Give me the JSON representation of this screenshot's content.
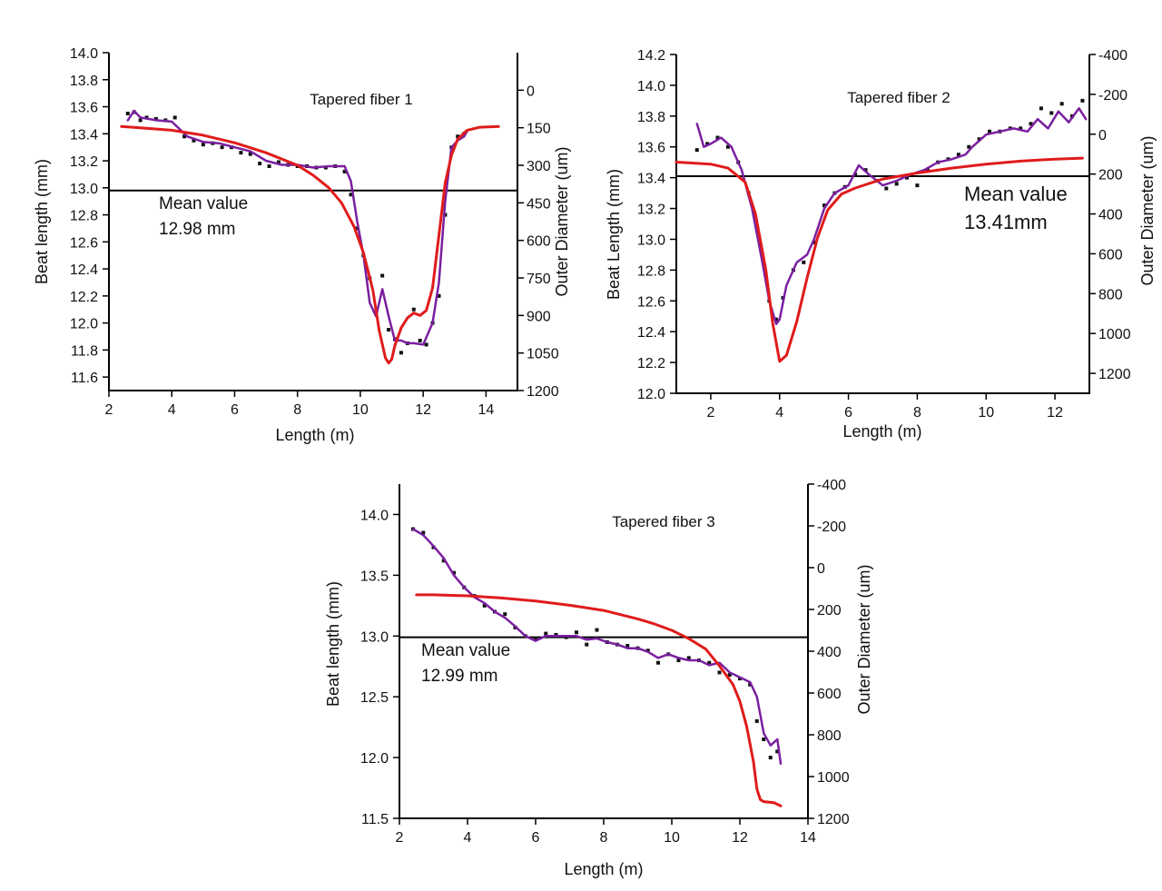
{
  "colors": {
    "data_points": "#111111",
    "fit_curve": "#7a1fa0",
    "outer_diameter": "#e01b1b",
    "mean_line": "#000000"
  },
  "chart_data": [
    {
      "type": "line",
      "title": "Tapered fiber 1",
      "xlabel": "Length (m)",
      "ylabel": "Beat length (mm)",
      "y2label": "Outer Diameter  (um)",
      "xlim": [
        2,
        15
      ],
      "ylim": [
        11.5,
        14.0
      ],
      "y2lim": [
        1200,
        -150
      ],
      "x_ticks": [
        2,
        4,
        6,
        8,
        10,
        12,
        14
      ],
      "y_ticks": [
        11.6,
        11.8,
        12.0,
        12.2,
        12.4,
        12.6,
        12.8,
        13.0,
        13.2,
        13.4,
        13.6,
        13.8,
        14.0
      ],
      "y2_ticks": [
        0,
        150,
        300,
        450,
        600,
        750,
        900,
        1050,
        1200
      ],
      "x_tick_labels": [
        "2",
        "4",
        "6",
        "8",
        "10",
        "12",
        "14"
      ],
      "y_tick_labels": [
        "11.6",
        "11.8",
        "12.0",
        "12.2",
        "12.4",
        "12.6",
        "12.8",
        "13.0",
        "13.2",
        "13.4",
        "13.6",
        "13.8",
        "14.0"
      ],
      "y2_tick_labels": [
        "0",
        "150",
        "300",
        "450",
        "600",
        "750",
        "900",
        "1050",
        "1200"
      ],
      "mean": {
        "value": 12.98,
        "label": "Mean value",
        "value_label": "12.98 mm"
      },
      "series": [
        {
          "role": "points",
          "axis": "left",
          "x": [
            2.6,
            2.8,
            3.0,
            3.2,
            3.5,
            3.8,
            4.1,
            4.4,
            4.7,
            5.0,
            5.3,
            5.6,
            5.9,
            6.2,
            6.5,
            6.8,
            7.1,
            7.4,
            7.7,
            8.0,
            8.3,
            8.6,
            8.9,
            9.2,
            9.5,
            9.7,
            9.9,
            10.1,
            10.3,
            10.5,
            10.7,
            10.9,
            11.1,
            11.3,
            11.5,
            11.7,
            11.9,
            12.1,
            12.3,
            12.5,
            12.7,
            12.9,
            13.1,
            13.3
          ],
          "y": [
            13.55,
            13.56,
            13.5,
            13.52,
            13.51,
            13.5,
            13.52,
            13.38,
            13.35,
            13.32,
            13.33,
            13.3,
            13.3,
            13.26,
            13.25,
            13.18,
            13.16,
            13.19,
            13.17,
            13.16,
            13.16,
            13.15,
            13.15,
            13.16,
            13.12,
            12.95,
            12.7,
            12.5,
            12.33,
            12.08,
            12.35,
            11.95,
            11.88,
            11.78,
            11.85,
            12.1,
            11.87,
            11.84,
            12.0,
            12.2,
            12.8,
            13.3,
            13.38,
            13.4
          ]
        },
        {
          "role": "fit",
          "axis": "left",
          "x": [
            2.6,
            2.8,
            3.0,
            3.5,
            4.0,
            4.5,
            5.0,
            5.5,
            6.0,
            6.5,
            7.0,
            7.5,
            8.0,
            8.5,
            9.0,
            9.5,
            9.7,
            9.9,
            10.1,
            10.3,
            10.5,
            10.7,
            10.9,
            11.1,
            11.3,
            11.5,
            11.7,
            12.0,
            12.3,
            12.5,
            12.7,
            12.9,
            13.1,
            13.3,
            13.4
          ],
          "y": [
            13.5,
            13.57,
            13.52,
            13.5,
            13.49,
            13.38,
            13.34,
            13.33,
            13.3,
            13.27,
            13.2,
            13.17,
            13.17,
            13.15,
            13.16,
            13.16,
            13.05,
            12.75,
            12.5,
            12.15,
            12.05,
            12.25,
            12.05,
            11.87,
            11.87,
            11.85,
            11.85,
            11.84,
            12.0,
            12.3,
            12.9,
            13.3,
            13.35,
            13.38,
            13.42
          ]
        },
        {
          "role": "outer_diameter",
          "axis": "right",
          "x": [
            2.4,
            3.0,
            4.0,
            5.0,
            6.0,
            7.0,
            8.0,
            8.5,
            9.0,
            9.4,
            9.8,
            10.1,
            10.4,
            10.6,
            10.8,
            10.9,
            11.0,
            11.1,
            11.3,
            11.5,
            11.7,
            11.9,
            12.1,
            12.3,
            12.5,
            12.7,
            12.9,
            13.1,
            13.4,
            13.8,
            14.4
          ],
          "y": [
            145,
            150,
            160,
            180,
            210,
            250,
            300,
            340,
            390,
            450,
            545,
            650,
            800,
            960,
            1070,
            1090,
            1075,
            1020,
            950,
            910,
            890,
            900,
            880,
            790,
            580,
            370,
            260,
            195,
            160,
            148,
            145
          ]
        }
      ]
    },
    {
      "type": "line",
      "title": "Tapered fiber 2",
      "xlabel": "Length (m)",
      "ylabel": "Beat Length (mm)",
      "y2label": "Outer Diameter  (um)",
      "xlim": [
        1,
        13
      ],
      "ylim": [
        12.0,
        14.2
      ],
      "y2lim": [
        1300,
        -400
      ],
      "x_ticks": [
        2,
        4,
        6,
        8,
        10,
        12
      ],
      "y_ticks": [
        12.0,
        12.2,
        12.4,
        12.6,
        12.8,
        13.0,
        13.2,
        13.4,
        13.6,
        13.8,
        14.0,
        14.2
      ],
      "y2_ticks": [
        -400,
        -200,
        0,
        200,
        400,
        600,
        800,
        1000,
        1200
      ],
      "x_tick_labels": [
        "2",
        "4",
        "6",
        "8",
        "10",
        "12"
      ],
      "y_tick_labels": [
        "12.0",
        "12.2",
        "12.4",
        "12.6",
        "12.8",
        "13.0",
        "13.2",
        "13.4",
        "13.6",
        "13.8",
        "14.0",
        "14.2"
      ],
      "y2_tick_labels": [
        "-400",
        "-200",
        "0",
        "200",
        "400",
        "600",
        "800",
        "1000",
        "1200"
      ],
      "mean": {
        "value": 13.41,
        "label": "Mean value",
        "value_label": "13.41mm"
      },
      "series": [
        {
          "role": "points",
          "axis": "left",
          "x": [
            1.6,
            1.9,
            2.2,
            2.5,
            2.8,
            3.1,
            3.4,
            3.7,
            3.9,
            4.1,
            4.4,
            4.7,
            5.0,
            5.3,
            5.6,
            5.9,
            6.2,
            6.5,
            6.8,
            7.1,
            7.4,
            7.7,
            8.0,
            8.3,
            8.6,
            8.9,
            9.2,
            9.5,
            9.8,
            10.1,
            10.4,
            10.7,
            11.0,
            11.3,
            11.6,
            11.9,
            12.2,
            12.5,
            12.8
          ],
          "y": [
            13.58,
            13.62,
            13.66,
            13.6,
            13.5,
            13.3,
            13.0,
            12.6,
            12.48,
            12.62,
            12.8,
            12.85,
            12.98,
            13.22,
            13.3,
            13.34,
            13.42,
            13.45,
            13.38,
            13.33,
            13.36,
            13.4,
            13.35,
            13.45,
            13.5,
            13.52,
            13.55,
            13.6,
            13.65,
            13.7,
            13.7,
            13.72,
            13.72,
            13.75,
            13.85,
            13.82,
            13.88,
            13.8,
            13.9
          ]
        },
        {
          "role": "fit",
          "axis": "left",
          "x": [
            1.6,
            1.8,
            2.0,
            2.3,
            2.6,
            2.9,
            3.2,
            3.5,
            3.7,
            3.9,
            4.0,
            4.2,
            4.5,
            4.8,
            5.0,
            5.3,
            5.6,
            6.0,
            6.3,
            6.6,
            7.0,
            7.4,
            7.8,
            8.2,
            8.6,
            9.0,
            9.4,
            9.6,
            10.0,
            10.4,
            10.8,
            11.2,
            11.5,
            11.8,
            12.1,
            12.4,
            12.7,
            12.9
          ],
          "y": [
            13.75,
            13.6,
            13.62,
            13.66,
            13.6,
            13.45,
            13.2,
            12.85,
            12.6,
            12.45,
            12.48,
            12.7,
            12.85,
            12.9,
            13.0,
            13.2,
            13.3,
            13.35,
            13.48,
            13.42,
            13.35,
            13.38,
            13.42,
            13.45,
            13.5,
            13.52,
            13.55,
            13.6,
            13.68,
            13.7,
            13.72,
            13.7,
            13.78,
            13.72,
            13.83,
            13.76,
            13.85,
            13.78
          ]
        },
        {
          "role": "outer_diameter",
          "axis": "right",
          "x": [
            1.0,
            2.0,
            2.5,
            3.0,
            3.3,
            3.6,
            3.8,
            4.0,
            4.2,
            4.5,
            4.8,
            5.1,
            5.4,
            5.8,
            6.2,
            7.0,
            8.0,
            9.0,
            10.0,
            11.0,
            12.0,
            12.8
          ],
          "y": [
            140,
            150,
            170,
            240,
            400,
            680,
            950,
            1140,
            1110,
            940,
            720,
            520,
            380,
            300,
            270,
            225,
            195,
            170,
            150,
            135,
            125,
            120
          ]
        }
      ]
    },
    {
      "type": "line",
      "title": "Tapered fiber 3",
      "xlabel": "Length (m)",
      "ylabel": "Beat length (mm)",
      "y2label": "Outer Diameter  (um)",
      "xlim": [
        2,
        14
      ],
      "ylim": [
        11.5,
        14.25
      ],
      "y2lim": [
        1200,
        -400
      ],
      "x_ticks": [
        2,
        4,
        6,
        8,
        10,
        12,
        14
      ],
      "y_ticks": [
        11.5,
        12.0,
        12.5,
        13.0,
        13.5,
        14.0
      ],
      "y2_ticks": [
        -400,
        -200,
        0,
        200,
        400,
        600,
        800,
        1000,
        1200
      ],
      "x_tick_labels": [
        "2",
        "4",
        "6",
        "8",
        "10",
        "12",
        "14"
      ],
      "y_tick_labels": [
        "11.5",
        "12.0",
        "12.5",
        "13.0",
        "13.5",
        "14.0"
      ],
      "y2_tick_labels": [
        "-400",
        "-200",
        "0",
        "200",
        "400",
        "600",
        "800",
        "1000",
        "1200"
      ],
      "mean": {
        "value": 12.99,
        "label": "Mean value",
        "value_label": "12.99 mm"
      },
      "series": [
        {
          "role": "points",
          "axis": "left",
          "x": [
            2.4,
            2.7,
            3.0,
            3.3,
            3.6,
            3.9,
            4.2,
            4.5,
            4.8,
            5.1,
            5.4,
            5.7,
            6.0,
            6.3,
            6.6,
            6.9,
            7.2,
            7.5,
            7.8,
            8.1,
            8.4,
            8.7,
            9.0,
            9.3,
            9.6,
            9.9,
            10.2,
            10.5,
            10.8,
            11.1,
            11.4,
            11.7,
            12.0,
            12.3,
            12.5,
            12.7,
            12.9,
            13.1
          ],
          "y": [
            13.88,
            13.85,
            13.73,
            13.62,
            13.52,
            13.4,
            13.33,
            13.25,
            13.2,
            13.18,
            13.07,
            13.0,
            12.98,
            13.02,
            13.01,
            12.99,
            13.03,
            12.93,
            13.05,
            12.95,
            12.93,
            12.92,
            12.9,
            12.88,
            12.78,
            12.85,
            12.8,
            12.82,
            12.8,
            12.78,
            12.7,
            12.68,
            12.65,
            12.6,
            12.3,
            12.15,
            12.0,
            12.05
          ]
        },
        {
          "role": "fit",
          "axis": "left",
          "x": [
            2.4,
            2.7,
            3.0,
            3.3,
            3.6,
            3.9,
            4.2,
            4.5,
            4.8,
            5.1,
            5.4,
            5.7,
            6.0,
            6.3,
            6.6,
            6.9,
            7.2,
            7.5,
            7.8,
            8.1,
            8.4,
            8.7,
            9.0,
            9.3,
            9.6,
            9.9,
            10.2,
            10.5,
            10.8,
            11.1,
            11.4,
            11.7,
            12.0,
            12.3,
            12.5,
            12.7,
            12.9,
            13.1,
            13.2
          ],
          "y": [
            13.88,
            13.83,
            13.74,
            13.64,
            13.5,
            13.4,
            13.32,
            13.27,
            13.2,
            13.15,
            13.08,
            13.0,
            12.96,
            13.0,
            13.0,
            13.0,
            13.0,
            12.97,
            12.98,
            12.95,
            12.93,
            12.9,
            12.9,
            12.87,
            12.82,
            12.85,
            12.82,
            12.8,
            12.8,
            12.76,
            12.78,
            12.7,
            12.66,
            12.62,
            12.5,
            12.2,
            12.1,
            12.15,
            11.95
          ]
        },
        {
          "role": "outer_diameter",
          "axis": "right",
          "x": [
            2.5,
            3.0,
            4.0,
            5.0,
            6.0,
            7.0,
            8.0,
            9.0,
            9.5,
            10.0,
            10.5,
            11.0,
            11.4,
            11.8,
            12.0,
            12.2,
            12.4,
            12.5,
            12.6,
            12.7,
            13.0,
            13.2
          ],
          "y": [
            130,
            130,
            135,
            145,
            160,
            180,
            205,
            245,
            270,
            300,
            340,
            390,
            470,
            560,
            640,
            760,
            930,
            1060,
            1110,
            1120,
            1125,
            1140
          ]
        }
      ]
    }
  ]
}
